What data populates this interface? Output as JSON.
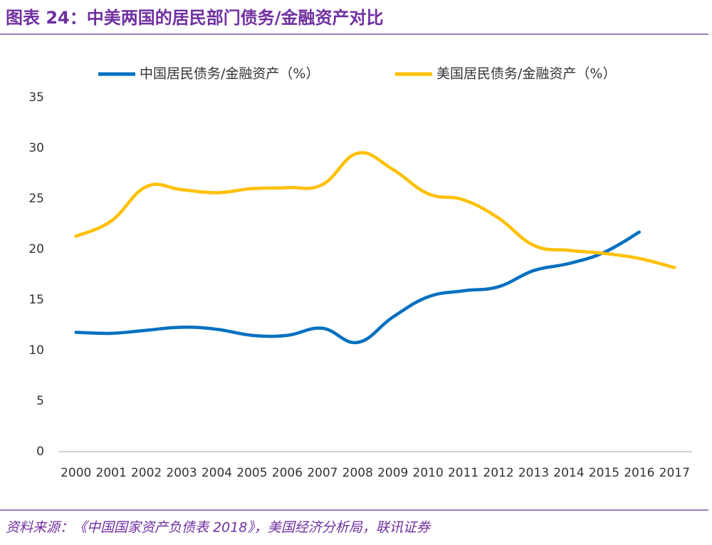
{
  "header": {
    "title": "图表 24：中美两国的居民部门债务/金融资产对比"
  },
  "chart_data": {
    "type": "line",
    "categories": [
      "2000",
      "2001",
      "2002",
      "2003",
      "2004",
      "2005",
      "2006",
      "2007",
      "2008",
      "2009",
      "2010",
      "2011",
      "2012",
      "2013",
      "2014",
      "2015",
      "2016",
      "2017"
    ],
    "series": [
      {
        "name": "中国居民债务/金融资产（%）",
        "color": "#0070c0",
        "values": [
          11.8,
          11.7,
          12.0,
          12.3,
          12.1,
          11.5,
          11.5,
          12.2,
          10.8,
          13.3,
          15.3,
          15.9,
          16.3,
          17.9,
          18.6,
          19.7,
          21.7,
          null
        ]
      },
      {
        "name": "美国居民债务/金融资产（%）",
        "color": "#ffc000",
        "values": [
          21.3,
          22.8,
          26.2,
          25.9,
          25.6,
          26.0,
          26.1,
          26.4,
          29.5,
          27.9,
          25.5,
          24.9,
          23.1,
          20.4,
          19.9,
          19.6,
          19.1,
          18.2
        ]
      }
    ],
    "ylim": [
      0,
      35
    ],
    "yticks": [
      0,
      5,
      10,
      15,
      20,
      25,
      30,
      35
    ],
    "grid": false,
    "legend": "top"
  },
  "footer": {
    "source": "资料来源：《中国国家资产负债表 2018》，美国经济分析局，联讯证券"
  }
}
